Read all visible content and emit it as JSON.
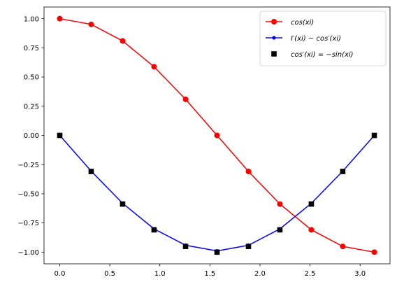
{
  "chart_data": {
    "type": "line",
    "xlim": [
      -0.157,
      3.299
    ],
    "ylim": [
      -1.1,
      1.1
    ],
    "x_ticks": [
      0.0,
      0.5,
      1.0,
      1.5,
      2.0,
      2.5,
      3.0
    ],
    "x_tick_labels": [
      "0.0",
      "0.5",
      "1.0",
      "1.5",
      "2.0",
      "2.5",
      "3.0"
    ],
    "y_ticks": [
      1.0,
      0.75,
      0.5,
      0.25,
      0.0,
      -0.25,
      -0.5,
      -0.75,
      -1.0
    ],
    "y_tick_labels": [
      "1.00",
      "0.75",
      "0.50",
      "0.25",
      "0.00",
      "−0.25",
      "−0.50",
      "−0.75",
      "−1.00"
    ],
    "grid": false,
    "legend_position": "top-right",
    "x": [
      0.0,
      0.314,
      0.628,
      0.942,
      1.257,
      1.571,
      1.885,
      2.199,
      2.513,
      2.827,
      3.142
    ],
    "series": [
      {
        "name": "cos(xi)",
        "style": "line-circle",
        "color": "#ff0000",
        "values": [
          1.0,
          0.951,
          0.809,
          0.588,
          0.309,
          0.0,
          -0.309,
          -0.588,
          -0.809,
          -0.951,
          -1.0
        ]
      },
      {
        "name": "I′(xi) ∼ cos′(xi)",
        "style": "line-dot",
        "color": "#0000ff",
        "values": [
          0.0,
          -0.306,
          -0.582,
          -0.801,
          -0.941,
          -0.99,
          -0.941,
          -0.801,
          -0.582,
          -0.306,
          0.0
        ]
      },
      {
        "name": "cos′(xi) = −sin(xi)",
        "style": "square-marker",
        "color": "#000000",
        "values": [
          0.0,
          -0.309,
          -0.588,
          -0.809,
          -0.951,
          -1.0,
          -0.951,
          -0.809,
          -0.588,
          -0.309,
          0.0
        ]
      }
    ]
  }
}
